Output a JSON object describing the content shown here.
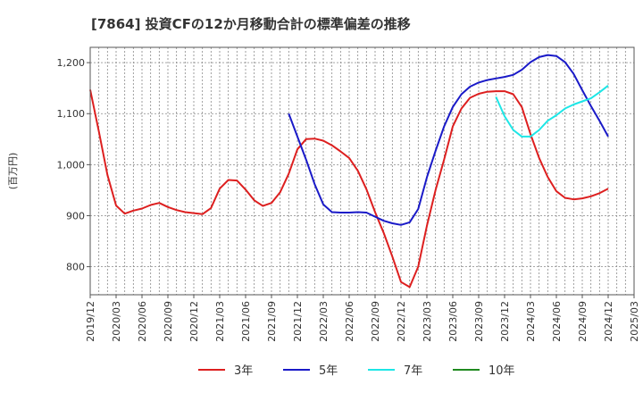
{
  "chart_data": {
    "type": "line",
    "title": "[7864]  投資CFの12か月移動合計の標準偏差の推移",
    "ylabel": "(百万円)",
    "xlabel": "",
    "ylim": [
      745,
      1230
    ],
    "yticks": [
      800,
      900,
      1000,
      1100,
      1200
    ],
    "ytick_labels": [
      "800",
      "900",
      "1,000",
      "1,100",
      "1,200"
    ],
    "x_range": [
      "2019-12",
      "2025-03"
    ],
    "xticks": [
      "2019/12",
      "2020/03",
      "2020/06",
      "2020/09",
      "2020/12",
      "2021/03",
      "2021/06",
      "2021/09",
      "2021/12",
      "2022/03",
      "2022/06",
      "2022/09",
      "2022/12",
      "2023/03",
      "2023/06",
      "2023/09",
      "2023/12",
      "2024/03",
      "2024/06",
      "2024/09",
      "2024/12",
      "2025/03"
    ],
    "grid": true,
    "legend_position": "bottom",
    "series": [
      {
        "name": "3年",
        "color": "#dd1f1f",
        "start": "2019-12",
        "values": [
          1147,
          1065,
          980,
          920,
          904,
          910,
          914,
          921,
          925,
          917,
          911,
          907,
          905,
          903,
          915,
          953,
          970,
          969,
          951,
          930,
          919,
          925,
          946,
          982,
          1030,
          1050,
          1051,
          1047,
          1038,
          1026,
          1013,
          988,
          952,
          907,
          866,
          820,
          770,
          760,
          800,
          880,
          950,
          1010,
          1075,
          1110,
          1131,
          1139,
          1143,
          1144,
          1144,
          1138,
          1113,
          1060,
          1013,
          976,
          948,
          935,
          932,
          934,
          938,
          944,
          953
        ]
      },
      {
        "name": "5年",
        "color": "#1a1ac8",
        "start": "2021-11",
        "values": [
          1100,
          1055,
          1010,
          962,
          922,
          907,
          906,
          906,
          907,
          906,
          898,
          890,
          885,
          882,
          887,
          913,
          975,
          1027,
          1075,
          1113,
          1138,
          1153,
          1161,
          1166,
          1169,
          1172,
          1176,
          1186,
          1201,
          1211,
          1215,
          1213,
          1201,
          1178,
          1146,
          1115,
          1086,
          1055
        ]
      },
      {
        "name": "7年",
        "color": "#1de6e6",
        "start": "2023-11",
        "values": [
          1133,
          1095,
          1068,
          1055,
          1055,
          1068,
          1086,
          1097,
          1110,
          1118,
          1124,
          1130,
          1142,
          1155
        ]
      },
      {
        "name": "10年",
        "color": "#1f8a1f",
        "start": "2025-01",
        "values": []
      }
    ]
  }
}
